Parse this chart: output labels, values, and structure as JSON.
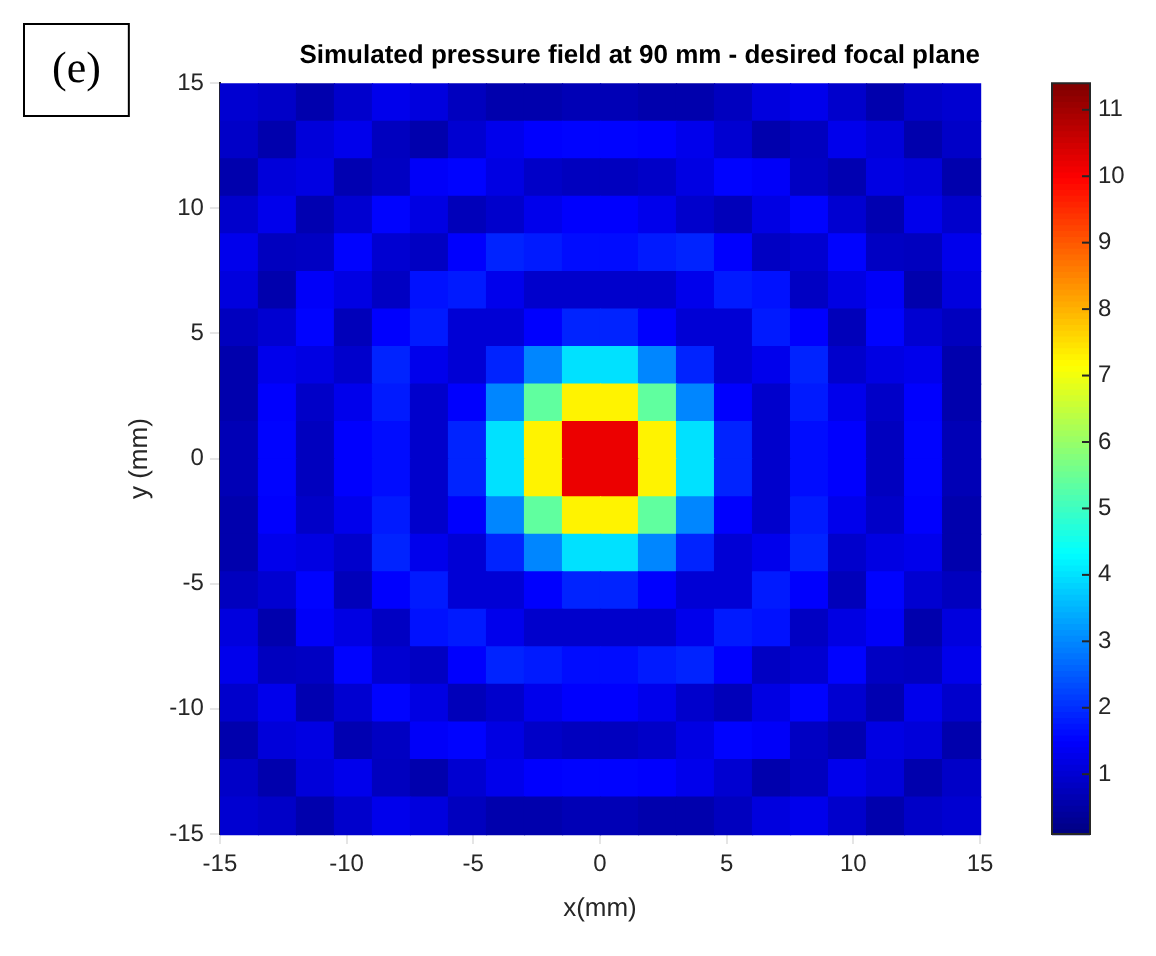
{
  "chart_data": {
    "type": "heatmap",
    "title": "Simulated pressure field at 90 mm - desired focal plane",
    "xlabel": "x(mm)",
    "ylabel": "y (mm)",
    "annotations": [
      "(e)"
    ],
    "xlim": [
      -15,
      15
    ],
    "ylim": [
      -15,
      15
    ],
    "xticks": [
      -15,
      -10,
      -5,
      0,
      5,
      10,
      15
    ],
    "yticks": [
      -15,
      -10,
      -5,
      0,
      5,
      10,
      15
    ],
    "clim": [
      0.1,
      11.4
    ],
    "cticks": [
      1,
      2,
      3,
      4,
      5,
      6,
      7,
      8,
      9,
      10,
      11
    ],
    "cells": [
      [
        1.0,
        0.9,
        0.6,
        0.95,
        1.3,
        1.15,
        0.8,
        0.6,
        0.6,
        0.7,
        0.7,
        0.6,
        0.6,
        0.8,
        1.15,
        1.3,
        0.95,
        0.6,
        0.9,
        1.0
      ],
      [
        0.9,
        0.6,
        1.1,
        1.3,
        0.8,
        0.6,
        1.0,
        1.3,
        1.5,
        1.55,
        1.55,
        1.5,
        1.3,
        1.0,
        0.6,
        0.8,
        1.3,
        1.1,
        0.6,
        0.9
      ],
      [
        0.6,
        1.1,
        1.2,
        0.65,
        0.85,
        1.45,
        1.55,
        1.2,
        0.9,
        0.8,
        0.8,
        0.9,
        1.2,
        1.55,
        1.45,
        0.85,
        0.65,
        1.2,
        1.1,
        0.6
      ],
      [
        0.95,
        1.3,
        0.65,
        1.0,
        1.55,
        1.2,
        0.75,
        0.95,
        1.3,
        1.5,
        1.5,
        1.3,
        0.95,
        0.75,
        1.2,
        1.55,
        1.0,
        0.65,
        1.3,
        0.95
      ],
      [
        1.3,
        0.8,
        0.85,
        1.55,
        1.0,
        0.85,
        1.5,
        1.9,
        1.8,
        1.65,
        1.65,
        1.8,
        1.9,
        1.5,
        0.85,
        1.0,
        1.55,
        0.85,
        0.8,
        1.3
      ],
      [
        1.15,
        0.6,
        1.45,
        1.2,
        0.85,
        1.7,
        1.8,
        1.3,
        0.95,
        0.95,
        0.95,
        0.95,
        1.3,
        1.8,
        1.7,
        0.85,
        1.2,
        1.45,
        0.6,
        1.15
      ],
      [
        0.8,
        1.0,
        1.55,
        0.75,
        1.5,
        1.8,
        1.05,
        1.05,
        1.5,
        1.9,
        1.9,
        1.5,
        1.05,
        1.05,
        1.8,
        1.5,
        0.75,
        1.55,
        1.0,
        0.8
      ],
      [
        0.6,
        1.3,
        1.2,
        0.95,
        1.9,
        1.3,
        1.05,
        1.9,
        3.0,
        4.0,
        4.0,
        3.0,
        1.9,
        1.05,
        1.3,
        1.9,
        0.95,
        1.2,
        1.3,
        0.6
      ],
      [
        0.6,
        1.5,
        0.9,
        1.3,
        1.8,
        0.95,
        1.5,
        3.0,
        5.4,
        7.3,
        7.3,
        5.4,
        3.0,
        1.5,
        0.95,
        1.8,
        1.3,
        0.9,
        1.5,
        0.6
      ],
      [
        0.7,
        1.55,
        0.8,
        1.5,
        1.65,
        0.95,
        1.9,
        4.0,
        7.3,
        10.2,
        10.2,
        7.3,
        4.0,
        1.9,
        0.95,
        1.65,
        1.5,
        0.8,
        1.55,
        0.7
      ],
      [
        0.7,
        1.55,
        0.8,
        1.5,
        1.65,
        0.95,
        1.9,
        4.0,
        7.3,
        10.2,
        10.2,
        7.3,
        4.0,
        1.9,
        0.95,
        1.65,
        1.5,
        0.8,
        1.55,
        0.7
      ],
      [
        0.6,
        1.5,
        0.9,
        1.3,
        1.8,
        0.95,
        1.5,
        3.0,
        5.4,
        7.3,
        7.3,
        5.4,
        3.0,
        1.5,
        0.95,
        1.8,
        1.3,
        0.9,
        1.5,
        0.6
      ],
      [
        0.6,
        1.3,
        1.2,
        0.95,
        1.9,
        1.3,
        1.05,
        1.9,
        3.0,
        4.0,
        4.0,
        3.0,
        1.9,
        1.05,
        1.3,
        1.9,
        0.95,
        1.2,
        1.3,
        0.6
      ],
      [
        0.8,
        1.0,
        1.55,
        0.75,
        1.5,
        1.8,
        1.05,
        1.05,
        1.5,
        1.9,
        1.9,
        1.5,
        1.05,
        1.05,
        1.8,
        1.5,
        0.75,
        1.55,
        1.0,
        0.8
      ],
      [
        1.15,
        0.6,
        1.45,
        1.2,
        0.85,
        1.7,
        1.8,
        1.3,
        0.95,
        0.95,
        0.95,
        0.95,
        1.3,
        1.8,
        1.7,
        0.85,
        1.2,
        1.45,
        0.6,
        1.15
      ],
      [
        1.3,
        0.8,
        0.85,
        1.55,
        1.0,
        0.85,
        1.5,
        1.9,
        1.8,
        1.65,
        1.65,
        1.8,
        1.9,
        1.5,
        0.85,
        1.0,
        1.55,
        0.85,
        0.8,
        1.3
      ],
      [
        0.95,
        1.3,
        0.65,
        1.0,
        1.55,
        1.2,
        0.75,
        0.95,
        1.3,
        1.5,
        1.5,
        1.3,
        0.95,
        0.75,
        1.2,
        1.55,
        1.0,
        0.65,
        1.3,
        0.95
      ],
      [
        0.6,
        1.1,
        1.2,
        0.65,
        0.85,
        1.45,
        1.55,
        1.2,
        0.9,
        0.8,
        0.8,
        0.9,
        1.2,
        1.55,
        1.45,
        0.85,
        0.65,
        1.2,
        1.1,
        0.6
      ],
      [
        0.9,
        0.6,
        1.1,
        1.3,
        0.8,
        0.6,
        1.0,
        1.3,
        1.5,
        1.55,
        1.55,
        1.5,
        1.3,
        1.0,
        0.6,
        0.8,
        1.3,
        1.1,
        0.6,
        0.9
      ],
      [
        1.0,
        0.9,
        0.6,
        0.95,
        1.3,
        1.15,
        0.8,
        0.6,
        0.6,
        0.7,
        0.7,
        0.6,
        0.6,
        0.8,
        1.15,
        1.3,
        0.95,
        0.6,
        0.9,
        1.0
      ]
    ]
  }
}
